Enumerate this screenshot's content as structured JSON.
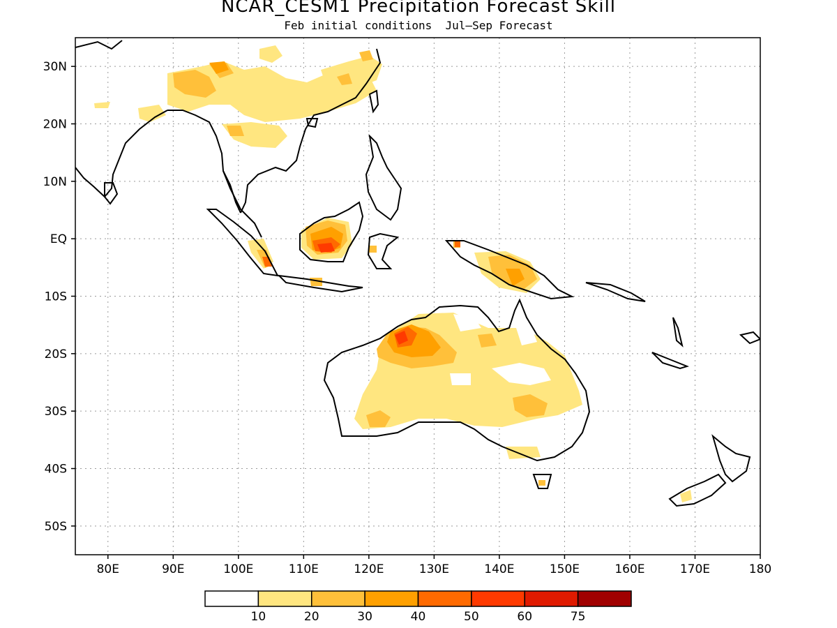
{
  "title": "NCAR_CESM1 Precipitation Forecast Skill",
  "subtitle": "Feb initial conditions  Jul–Sep Forecast",
  "map": {
    "lon_range": [
      75,
      180
    ],
    "lat_range": [
      -55,
      35
    ],
    "grid": "dotted",
    "lat_ticks": [
      {
        "value": 30,
        "label": "30N"
      },
      {
        "value": 20,
        "label": "20N"
      },
      {
        "value": 10,
        "label": "10N"
      },
      {
        "value": 0,
        "label": "EQ"
      },
      {
        "value": -10,
        "label": "10S"
      },
      {
        "value": -20,
        "label": "20S"
      },
      {
        "value": -30,
        "label": "30S"
      },
      {
        "value": -40,
        "label": "40S"
      },
      {
        "value": -50,
        "label": "50S"
      }
    ],
    "lon_ticks": [
      {
        "value": 80,
        "label": "80E"
      },
      {
        "value": 90,
        "label": "90E"
      },
      {
        "value": 100,
        "label": "100E"
      },
      {
        "value": 110,
        "label": "110E"
      },
      {
        "value": 120,
        "label": "120E"
      },
      {
        "value": 130,
        "label": "130E"
      },
      {
        "value": 140,
        "label": "140E"
      },
      {
        "value": 150,
        "label": "150E"
      },
      {
        "value": 160,
        "label": "160E"
      },
      {
        "value": 170,
        "label": "170E"
      },
      {
        "value": 180,
        "label": "180"
      }
    ]
  },
  "colorbar": {
    "colors": [
      "#ffffff",
      "#ffe680",
      "#ffc03a",
      "#ffa000",
      "#ff6a00",
      "#ff3a00",
      "#e01a00",
      "#a00000"
    ],
    "labels": [
      "10",
      "20",
      "30",
      "40",
      "50",
      "60",
      "75"
    ]
  }
}
